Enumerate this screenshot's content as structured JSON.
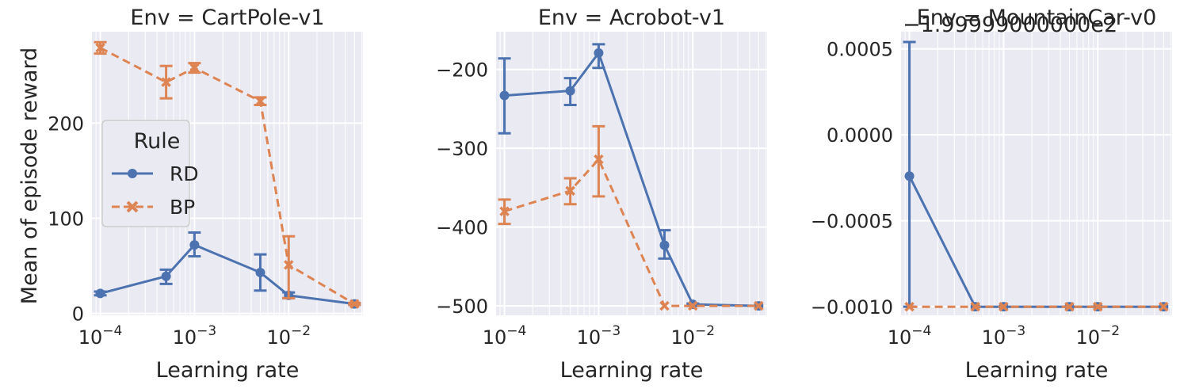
{
  "figure": {
    "ylabel": "Mean of episode reward",
    "xlabel": "Learning rate",
    "legend": {
      "title": "Rule",
      "entries": [
        {
          "label": "RD",
          "color": "#4c72b0",
          "marker": "circle",
          "dash": "solid"
        },
        {
          "label": "BP",
          "color": "#dd8452",
          "marker": "x",
          "dash": "dashed"
        }
      ]
    },
    "offset_text": "=1.999990000e2"
  },
  "chart_data": [
    {
      "type": "line",
      "title": "Env = CartPole-v1",
      "xlabel": "Learning rate",
      "ylabel": "Mean of episode reward",
      "xscale": "log",
      "x": [
        0.0001,
        0.0005,
        0.001,
        0.005,
        0.01,
        0.05
      ],
      "xticks": [
        0.0001,
        0.001,
        0.01
      ],
      "ylim": [
        -2,
        296
      ],
      "yticks": [
        0,
        100,
        200
      ],
      "ytick_labels": [
        "0",
        "100",
        "200"
      ],
      "grid": true,
      "legend_position": "center-left",
      "series": [
        {
          "name": "RD",
          "values": [
            21,
            39,
            72,
            43,
            19,
            10
          ],
          "err_low": [
            19,
            31,
            60,
            24,
            16,
            9
          ],
          "err_high": [
            23,
            46,
            85,
            62,
            22,
            11
          ]
        },
        {
          "name": "BP",
          "values": [
            279,
            243,
            258,
            223,
            51,
            10
          ],
          "err_low": [
            273,
            226,
            253,
            219,
            16,
            9
          ],
          "err_high": [
            285,
            260,
            263,
            227,
            81,
            11
          ]
        }
      ]
    },
    {
      "type": "line",
      "title": "Env = Acrobot-v1",
      "xlabel": "Learning rate",
      "ylabel": "",
      "xscale": "log",
      "x": [
        0.0001,
        0.0005,
        0.001,
        0.005,
        0.01,
        0.05
      ],
      "xticks": [
        0.0001,
        0.001,
        0.01
      ],
      "ylim": [
        -512,
        -152
      ],
      "yticks": [
        -500,
        -400,
        -300,
        -200
      ],
      "ytick_labels": [
        "−500",
        "−400",
        "−300",
        "−200"
      ],
      "grid": true,
      "series": [
        {
          "name": "RD",
          "values": [
            -233,
            -227,
            -179,
            -423,
            -498,
            -500
          ],
          "err_low": [
            -281,
            -245,
            -198,
            -440,
            -500,
            -500
          ],
          "err_high": [
            -186,
            -211,
            -168,
            -404,
            -497,
            -500
          ]
        },
        {
          "name": "BP",
          "values": [
            -380,
            -354,
            -314,
            -500,
            -500,
            -500
          ],
          "err_low": [
            -396,
            -371,
            -361,
            -500,
            -500,
            -500
          ],
          "err_high": [
            -365,
            -338,
            -272,
            -500,
            -500,
            -500
          ]
        }
      ]
    },
    {
      "type": "line",
      "title": "Env = MountainCar-v0",
      "xlabel": "Learning rate",
      "ylabel": "",
      "xscale": "log",
      "x": [
        0.0001,
        0.0005,
        0.001,
        0.005,
        0.01,
        0.05
      ],
      "xticks": [
        0.0001,
        0.001,
        0.01
      ],
      "ylim": [
        -0.00105,
        0.0006
      ],
      "yticks": [
        -0.001,
        -0.0005,
        0.0,
        0.0005
      ],
      "ytick_labels": [
        "−0.0010",
        "−0.0005",
        "0.0000",
        "0.0005"
      ],
      "offset_text": "−1.99999000000e2",
      "grid": true,
      "series": [
        {
          "name": "RD",
          "values": [
            -0.00024,
            -0.001,
            -0.001,
            -0.001,
            -0.001,
            -0.001
          ],
          "err_low": [
            -0.001,
            -0.001,
            -0.001,
            -0.001,
            -0.001,
            -0.001
          ],
          "err_high": [
            0.00054,
            -0.001,
            -0.001,
            -0.001,
            -0.001,
            -0.001
          ]
        },
        {
          "name": "BP",
          "values": [
            -0.001,
            -0.001,
            -0.001,
            -0.001,
            -0.001,
            -0.001
          ],
          "err_low": [
            -0.001,
            -0.001,
            -0.001,
            -0.001,
            -0.001,
            -0.001
          ],
          "err_high": [
            -0.001,
            -0.001,
            -0.001,
            -0.001,
            -0.001,
            -0.001
          ]
        }
      ]
    }
  ]
}
